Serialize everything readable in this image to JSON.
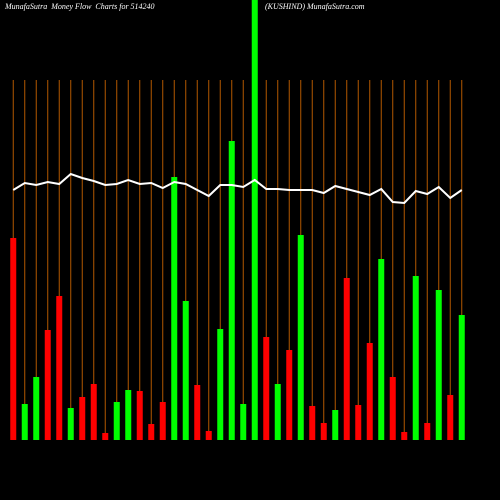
{
  "chart_data": {
    "type": "bar",
    "title": "MunafaSutra  Money Flow  Charts for 514240",
    "subtitle": "(KUSHIND) MunafaSutra.com",
    "values": [
      202,
      36,
      63,
      110,
      144,
      32,
      43,
      56,
      7,
      38,
      50,
      49,
      16,
      38,
      263,
      139,
      55,
      9,
      111,
      299,
      36,
      440,
      103,
      56,
      90,
      205,
      34,
      17,
      30,
      162,
      35,
      97,
      181,
      63,
      8,
      164,
      17,
      150,
      45,
      125
    ],
    "bar_colors": [
      "#ff0000",
      "#00ff00",
      "#00ff00",
      "#ff0000",
      "#ff0000",
      "#00ff00",
      "#ff0000",
      "#ff0000",
      "#ff0000",
      "#00ff00",
      "#00ff00",
      "#ff0000",
      "#ff0000",
      "#ff0000",
      "#00ff00",
      "#00ff00",
      "#ff0000",
      "#ff0000",
      "#00ff00",
      "#00ff00",
      "#00ff00",
      "#00ff00",
      "#ff0000",
      "#00ff00",
      "#ff0000",
      "#00ff00",
      "#ff0000",
      "#ff0000",
      "#00ff00",
      "#ff0000",
      "#ff0000",
      "#ff0000",
      "#00ff00",
      "#ff0000",
      "#ff0000",
      "#00ff00",
      "#ff0000",
      "#00ff00",
      "#ff0000",
      "#00ff00"
    ],
    "line": {
      "color": "#ffffff",
      "values": [
        250,
        257,
        255,
        258,
        256,
        266,
        262,
        259,
        255,
        256,
        260,
        256,
        257,
        252,
        258,
        256,
        250,
        244,
        255,
        255,
        253,
        260,
        251,
        251,
        250,
        250,
        250,
        247,
        254,
        251,
        248,
        245,
        251,
        238,
        237,
        249,
        246,
        253,
        242,
        250
      ]
    },
    "ylim": [
      0,
      440
    ],
    "grid": true,
    "grid_color": "#b35900"
  }
}
